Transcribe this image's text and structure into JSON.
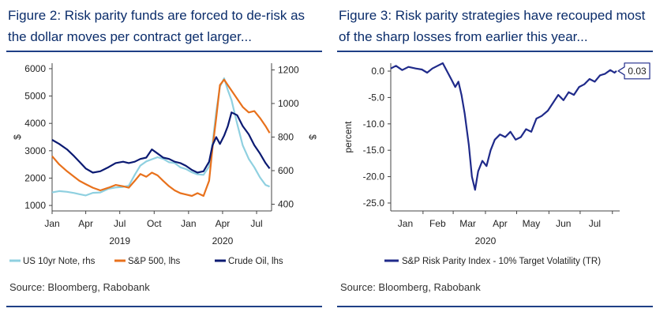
{
  "left_panel": {
    "title": "Figure 2: Risk parity funds are forced to de-risk as the dollar moves per contract get larger...",
    "source": "Source: Bloomberg, Rabobank"
  },
  "right_panel": {
    "title": "Figure 3: Risk parity strategies have recouped most of the sharp losses from earlier this year...",
    "source": "Source: Bloomberg, Rabobank"
  },
  "chart_data": [
    {
      "type": "line",
      "title": "Figure 2: Risk parity funds are forced to de-risk as the dollar moves per contract get larger...",
      "x_type": "date",
      "x_ticks": [
        "2019-01-01",
        "2019-04-01",
        "2019-07-01",
        "2019-10-01",
        "2020-01-01",
        "2020-04-01",
        "2020-07-01"
      ],
      "x_tick_labels": [
        "Jan",
        "Apr",
        "Jul",
        "Oct",
        "Jan",
        "Apr",
        "Jul"
      ],
      "x_group_labels": [
        {
          "label": "2019",
          "at": "2019-07-01"
        },
        {
          "label": "2020",
          "at": "2020-04-01"
        }
      ],
      "xlim": [
        "2019-01-01",
        "2020-08-10"
      ],
      "ylabel_left": "$",
      "ylabel_right": "$",
      "ylim_left": [
        800,
        6200
      ],
      "ylim_right": [
        360,
        1240
      ],
      "yticks_left": [
        1000,
        2000,
        3000,
        4000,
        5000,
        6000
      ],
      "yticks_right": [
        400,
        600,
        800,
        1000,
        1200
      ],
      "legend_position": "bottom",
      "grid": false,
      "series": [
        {
          "name": "US 10yr Note, rhs",
          "axis": "right",
          "color": "#8fd0e0",
          "points": [
            [
              "2019-01-01",
              470
            ],
            [
              "2019-01-20",
              478
            ],
            [
              "2019-02-10",
              474
            ],
            [
              "2019-03-01",
              467
            ],
            [
              "2019-03-15",
              460
            ],
            [
              "2019-04-01",
              452
            ],
            [
              "2019-04-20",
              468
            ],
            [
              "2019-05-10",
              470
            ],
            [
              "2019-06-01",
              492
            ],
            [
              "2019-06-20",
              500
            ],
            [
              "2019-07-10",
              503
            ],
            [
              "2019-07-25",
              510
            ],
            [
              "2019-08-10",
              575
            ],
            [
              "2019-08-25",
              630
            ],
            [
              "2019-09-10",
              655
            ],
            [
              "2019-09-25",
              668
            ],
            [
              "2019-10-10",
              680
            ],
            [
              "2019-10-25",
              670
            ],
            [
              "2019-11-10",
              650
            ],
            [
              "2019-11-25",
              645
            ],
            [
              "2019-12-10",
              620
            ],
            [
              "2019-12-25",
              610
            ],
            [
              "2020-01-10",
              590
            ],
            [
              "2020-01-25",
              578
            ],
            [
              "2020-02-10",
              575
            ],
            [
              "2020-02-25",
              625
            ],
            [
              "2020-03-05",
              760
            ],
            [
              "2020-03-15",
              950
            ],
            [
              "2020-03-25",
              1100
            ],
            [
              "2020-04-05",
              1150
            ],
            [
              "2020-04-15",
              1080
            ],
            [
              "2020-04-25",
              1020
            ],
            [
              "2020-05-10",
              880
            ],
            [
              "2020-05-25",
              750
            ],
            [
              "2020-06-10",
              670
            ],
            [
              "2020-06-25",
              620
            ],
            [
              "2020-07-10",
              560
            ],
            [
              "2020-07-25",
              515
            ],
            [
              "2020-08-05",
              505
            ]
          ]
        },
        {
          "name": "S&P 500, lhs",
          "axis": "left",
          "color": "#e8711c",
          "points": [
            [
              "2019-01-01",
              2800
            ],
            [
              "2019-01-20",
              2500
            ],
            [
              "2019-02-10",
              2250
            ],
            [
              "2019-03-01",
              2050
            ],
            [
              "2019-03-15",
              1900
            ],
            [
              "2019-04-01",
              1780
            ],
            [
              "2019-04-20",
              1650
            ],
            [
              "2019-05-10",
              1550
            ],
            [
              "2019-06-01",
              1650
            ],
            [
              "2019-06-20",
              1750
            ],
            [
              "2019-07-10",
              1700
            ],
            [
              "2019-07-25",
              1650
            ],
            [
              "2019-08-10",
              1900
            ],
            [
              "2019-08-25",
              2150
            ],
            [
              "2019-09-10",
              2050
            ],
            [
              "2019-09-25",
              2200
            ],
            [
              "2019-10-10",
              2100
            ],
            [
              "2019-10-25",
              1900
            ],
            [
              "2019-11-10",
              1700
            ],
            [
              "2019-11-25",
              1550
            ],
            [
              "2019-12-10",
              1450
            ],
            [
              "2019-12-25",
              1400
            ],
            [
              "2020-01-10",
              1350
            ],
            [
              "2020-01-25",
              1450
            ],
            [
              "2020-02-10",
              1350
            ],
            [
              "2020-02-25",
              1900
            ],
            [
              "2020-03-05",
              3100
            ],
            [
              "2020-03-15",
              4200
            ],
            [
              "2020-03-25",
              5400
            ],
            [
              "2020-04-05",
              5600
            ],
            [
              "2020-04-15",
              5400
            ],
            [
              "2020-04-25",
              5200
            ],
            [
              "2020-05-10",
              4900
            ],
            [
              "2020-05-25",
              4600
            ],
            [
              "2020-06-10",
              4400
            ],
            [
              "2020-06-25",
              4450
            ],
            [
              "2020-07-10",
              4200
            ],
            [
              "2020-07-25",
              3900
            ],
            [
              "2020-08-05",
              3650
            ]
          ]
        },
        {
          "name": "Crude Oil, lhs",
          "axis": "left",
          "color": "#0b1a72",
          "points": [
            [
              "2019-01-01",
              3400
            ],
            [
              "2019-01-20",
              3250
            ],
            [
              "2019-02-10",
              3050
            ],
            [
              "2019-03-01",
              2800
            ],
            [
              "2019-03-15",
              2600
            ],
            [
              "2019-04-01",
              2350
            ],
            [
              "2019-04-20",
              2200
            ],
            [
              "2019-05-10",
              2250
            ],
            [
              "2019-06-01",
              2400
            ],
            [
              "2019-06-20",
              2550
            ],
            [
              "2019-07-10",
              2600
            ],
            [
              "2019-07-25",
              2550
            ],
            [
              "2019-08-10",
              2600
            ],
            [
              "2019-08-25",
              2700
            ],
            [
              "2019-09-10",
              2750
            ],
            [
              "2019-09-25",
              3050
            ],
            [
              "2019-10-10",
              2900
            ],
            [
              "2019-10-25",
              2750
            ],
            [
              "2019-11-10",
              2700
            ],
            [
              "2019-11-25",
              2600
            ],
            [
              "2019-12-10",
              2550
            ],
            [
              "2019-12-25",
              2450
            ],
            [
              "2020-01-10",
              2300
            ],
            [
              "2020-01-25",
              2200
            ],
            [
              "2020-02-10",
              2250
            ],
            [
              "2020-02-25",
              2600
            ],
            [
              "2020-03-05",
              3200
            ],
            [
              "2020-03-15",
              3500
            ],
            [
              "2020-03-25",
              3250
            ],
            [
              "2020-04-05",
              3550
            ],
            [
              "2020-04-15",
              3900
            ],
            [
              "2020-04-25",
              4400
            ],
            [
              "2020-05-10",
              4300
            ],
            [
              "2020-05-25",
              3900
            ],
            [
              "2020-06-10",
              3600
            ],
            [
              "2020-06-25",
              3200
            ],
            [
              "2020-07-10",
              2900
            ],
            [
              "2020-07-25",
              2550
            ],
            [
              "2020-08-05",
              2350
            ]
          ]
        }
      ]
    },
    {
      "type": "line",
      "title": "Figure 3: Risk parity strategies have recouped most of the sharp losses from earlier this year...",
      "x_type": "date",
      "x_ticks": [
        "2020-01-15",
        "2020-02-15",
        "2020-03-15",
        "2020-04-15",
        "2020-05-15",
        "2020-06-15",
        "2020-07-15"
      ],
      "x_tick_labels": [
        "Jan",
        "Feb",
        "Mar",
        "Apr",
        "May",
        "Jun",
        "Jul"
      ],
      "x_group_labels": [
        {
          "label": "2020",
          "at": "2020-04-01"
        }
      ],
      "xlim": [
        "2020-01-01",
        "2020-08-08"
      ],
      "ylabel": "percent",
      "ylim": [
        -26.5,
        1.5
      ],
      "yticks": [
        0,
        -5,
        -10,
        -15,
        -20,
        -25
      ],
      "ytick_labels": [
        "0.0",
        "-5.0",
        "-10.0",
        "-15.0",
        "-20.0",
        "-25.0"
      ],
      "legend_position": "bottom",
      "grid": false,
      "annotation": {
        "label": "0.03",
        "value": 0.03
      },
      "series": [
        {
          "name": "S&P Risk Parity Index - 10% Target Volatility (TR)",
          "color": "#1f2a8a",
          "points": [
            [
              "2020-01-01",
              0.5
            ],
            [
              "2020-01-06",
              1.0
            ],
            [
              "2020-01-12",
              0.2
            ],
            [
              "2020-01-18",
              0.8
            ],
            [
              "2020-01-25",
              0.5
            ],
            [
              "2020-01-31",
              0.3
            ],
            [
              "2020-02-05",
              -0.3
            ],
            [
              "2020-02-10",
              0.5
            ],
            [
              "2020-02-15",
              1.0
            ],
            [
              "2020-02-20",
              1.5
            ],
            [
              "2020-02-24",
              0.0
            ],
            [
              "2020-02-28",
              -1.5
            ],
            [
              "2020-03-03",
              -3.0
            ],
            [
              "2020-03-06",
              -2.0
            ],
            [
              "2020-03-09",
              -4.5
            ],
            [
              "2020-03-12",
              -8.0
            ],
            [
              "2020-03-16",
              -14.0
            ],
            [
              "2020-03-19",
              -20.0
            ],
            [
              "2020-03-22",
              -22.5
            ],
            [
              "2020-03-25",
              -19.0
            ],
            [
              "2020-03-29",
              -17.0
            ],
            [
              "2020-04-02",
              -18.0
            ],
            [
              "2020-04-06",
              -15.0
            ],
            [
              "2020-04-10",
              -13.0
            ],
            [
              "2020-04-15",
              -12.0
            ],
            [
              "2020-04-20",
              -12.5
            ],
            [
              "2020-04-25",
              -11.5
            ],
            [
              "2020-04-30",
              -13.0
            ],
            [
              "2020-05-05",
              -12.5
            ],
            [
              "2020-05-10",
              -11.0
            ],
            [
              "2020-05-15",
              -11.5
            ],
            [
              "2020-05-20",
              -9.0
            ],
            [
              "2020-05-25",
              -8.5
            ],
            [
              "2020-05-31",
              -7.5
            ],
            [
              "2020-06-05",
              -6.0
            ],
            [
              "2020-06-10",
              -4.5
            ],
            [
              "2020-06-15",
              -5.5
            ],
            [
              "2020-06-20",
              -4.0
            ],
            [
              "2020-06-25",
              -4.5
            ],
            [
              "2020-06-30",
              -3.0
            ],
            [
              "2020-07-05",
              -2.5
            ],
            [
              "2020-07-10",
              -1.5
            ],
            [
              "2020-07-15",
              -2.0
            ],
            [
              "2020-07-20",
              -0.8
            ],
            [
              "2020-07-25",
              -0.5
            ],
            [
              "2020-07-30",
              0.2
            ],
            [
              "2020-08-03",
              -0.3
            ],
            [
              "2020-08-05",
              0.03
            ]
          ]
        }
      ]
    }
  ]
}
